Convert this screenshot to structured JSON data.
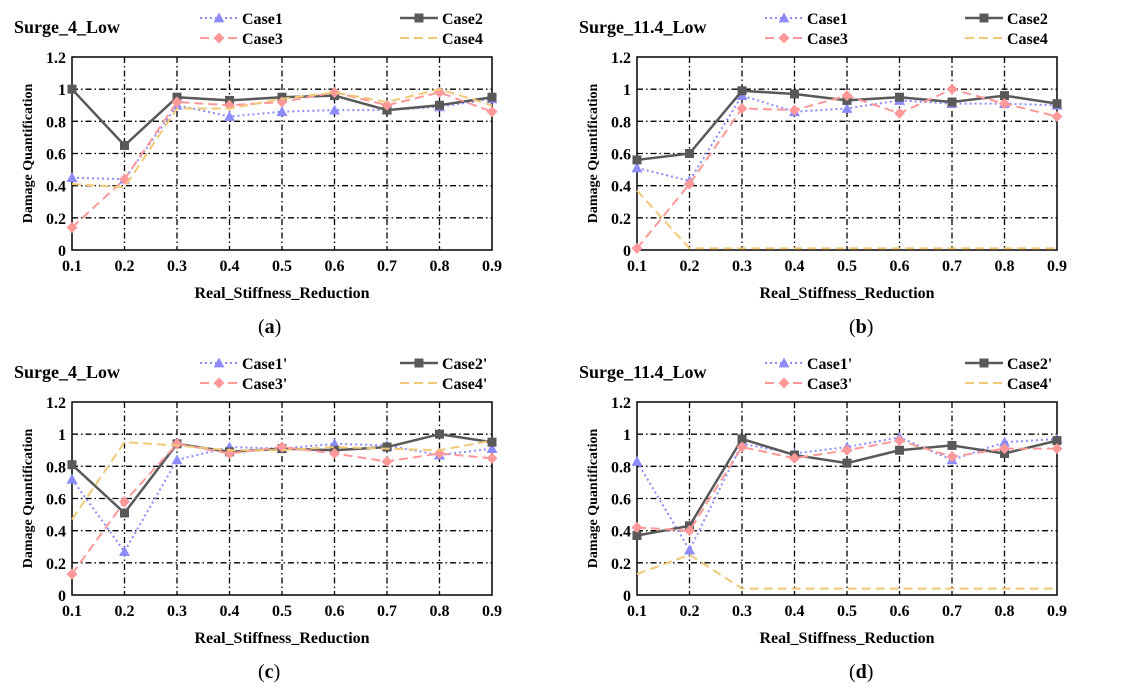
{
  "colors": {
    "case1": "#8c8cff",
    "case2": "#595959",
    "case3": "#ff9999",
    "case4": "#f0c878",
    "grid": "#000000"
  },
  "chart_data": [
    {
      "panel": "a",
      "type": "line",
      "title": "Surge_4_Low",
      "xlabel": "Real_Stiffness_Reduction",
      "ylabel": "Damage Quantification",
      "caption_letter": "a",
      "x": [
        0.1,
        0.2,
        0.3,
        0.4,
        0.5,
        0.6,
        0.7,
        0.8,
        0.9
      ],
      "xlim": [
        0.1,
        0.9
      ],
      "ylim": [
        0,
        1.2
      ],
      "x_ticks": [
        "0.1",
        "0.2",
        "0.3",
        "0.4",
        "0.5",
        "0.6",
        "0.7",
        "0.8",
        "0.9"
      ],
      "y_ticks": [
        "0",
        "0.2",
        "0.4",
        "0.6",
        "0.8",
        "1",
        "1.2"
      ],
      "grid": true,
      "legend_position": "top",
      "series": [
        {
          "name": "Case1",
          "style": "dotted-triangle",
          "values": [
            0.45,
            0.44,
            0.9,
            0.83,
            0.86,
            0.87,
            0.87,
            0.89,
            0.94
          ]
        },
        {
          "name": "Case2",
          "style": "solid-square",
          "values": [
            1.0,
            0.65,
            0.95,
            0.93,
            0.95,
            0.96,
            0.87,
            0.9,
            0.95
          ]
        },
        {
          "name": "Case3",
          "style": "dashed-diamond",
          "values": [
            0.14,
            0.44,
            0.92,
            0.9,
            0.92,
            0.98,
            0.9,
            0.98,
            0.86
          ]
        },
        {
          "name": "Case4",
          "style": "dashed",
          "values": [
            0.41,
            0.39,
            0.88,
            0.88,
            0.94,
            0.98,
            0.92,
            1.0,
            0.9
          ]
        }
      ]
    },
    {
      "panel": "b",
      "type": "line",
      "title": "Surge_11.4_Low",
      "xlabel": "Real_Stiffness_Reduction",
      "ylabel": "Damage Quantification",
      "caption_letter": "b",
      "x": [
        0.1,
        0.2,
        0.3,
        0.4,
        0.5,
        0.6,
        0.7,
        0.8,
        0.9
      ],
      "xlim": [
        0.1,
        0.9
      ],
      "ylim": [
        0,
        1.2
      ],
      "x_ticks": [
        "0.1",
        "0.2",
        "0.3",
        "0.4",
        "0.5",
        "0.6",
        "0.7",
        "0.8",
        "0.9"
      ],
      "y_ticks": [
        "0",
        "0.2",
        "0.4",
        "0.6",
        "0.8",
        "1",
        "1.2"
      ],
      "grid": true,
      "legend_position": "top",
      "series": [
        {
          "name": "Case1",
          "style": "dotted-triangle",
          "values": [
            0.51,
            0.43,
            0.96,
            0.86,
            0.88,
            0.93,
            0.91,
            0.91,
            0.9
          ]
        },
        {
          "name": "Case2",
          "style": "solid-square",
          "values": [
            0.56,
            0.6,
            0.99,
            0.97,
            0.93,
            0.95,
            0.92,
            0.96,
            0.91
          ]
        },
        {
          "name": "Case3",
          "style": "dashed-diamond",
          "values": [
            0.01,
            0.41,
            0.88,
            0.87,
            0.96,
            0.85,
            1.0,
            0.91,
            0.83
          ]
        },
        {
          "name": "Case4",
          "style": "dashed",
          "values": [
            0.37,
            0.01,
            0.01,
            0.01,
            0.01,
            0.01,
            0.01,
            0.01,
            0.01
          ]
        }
      ]
    },
    {
      "panel": "c",
      "type": "line",
      "title": "Surge_4_Low",
      "xlabel": "Real_Stiffness_Reduction",
      "ylabel": "Damage Quantification",
      "caption_letter": "c",
      "x": [
        0.1,
        0.2,
        0.3,
        0.4,
        0.5,
        0.6,
        0.7,
        0.8,
        0.9
      ],
      "xlim": [
        0.1,
        0.9
      ],
      "ylim": [
        0,
        1.2
      ],
      "x_ticks": [
        "0.1",
        "0.2",
        "0.3",
        "0.4",
        "0.5",
        "0.6",
        "0.7",
        "0.8",
        "0.9"
      ],
      "y_ticks": [
        "0",
        "0.2",
        "0.4",
        "0.6",
        "0.8",
        "1",
        "1.2"
      ],
      "grid": true,
      "legend_position": "top",
      "series": [
        {
          "name": "Case1'",
          "style": "dotted-triangle",
          "values": [
            0.72,
            0.27,
            0.84,
            0.92,
            0.91,
            0.94,
            0.93,
            0.87,
            0.91
          ]
        },
        {
          "name": "Case2'",
          "style": "solid-square",
          "values": [
            0.81,
            0.51,
            0.94,
            0.89,
            0.91,
            0.9,
            0.92,
            1.0,
            0.95
          ]
        },
        {
          "name": "Case3'",
          "style": "dashed-diamond",
          "values": [
            0.13,
            0.58,
            0.94,
            0.88,
            0.92,
            0.88,
            0.83,
            0.88,
            0.85
          ]
        },
        {
          "name": "Case4'",
          "style": "dashed",
          "values": [
            0.47,
            0.95,
            0.93,
            0.9,
            0.9,
            0.92,
            0.91,
            0.9,
            0.96
          ]
        }
      ]
    },
    {
      "panel": "d",
      "type": "line",
      "title": "Surge_11.4_Low",
      "xlabel": "Real_Stiffness_Reduction",
      "ylabel": "Damage Quantification",
      "caption_letter": "d",
      "x": [
        0.1,
        0.2,
        0.3,
        0.4,
        0.5,
        0.6,
        0.7,
        0.8,
        0.9
      ],
      "xlim": [
        0.1,
        0.9
      ],
      "ylim": [
        0,
        1.2
      ],
      "x_ticks": [
        "0.1",
        "0.2",
        "0.3",
        "0.4",
        "0.5",
        "0.6",
        "0.7",
        "0.8",
        "0.9"
      ],
      "y_ticks": [
        "0",
        "0.2",
        "0.4",
        "0.6",
        "0.8",
        "1",
        "1.2"
      ],
      "grid": true,
      "legend_position": "top",
      "series": [
        {
          "name": "Case1'",
          "style": "dotted-triangle",
          "values": [
            0.83,
            0.28,
            0.94,
            0.88,
            0.92,
            0.98,
            0.84,
            0.95,
            0.97
          ]
        },
        {
          "name": "Case2'",
          "style": "solid-square",
          "values": [
            0.37,
            0.43,
            0.97,
            0.87,
            0.82,
            0.9,
            0.93,
            0.88,
            0.96
          ]
        },
        {
          "name": "Case3'",
          "style": "dashed-diamond",
          "values": [
            0.42,
            0.4,
            0.92,
            0.85,
            0.9,
            0.96,
            0.86,
            0.91,
            0.91
          ]
        },
        {
          "name": "Case4'",
          "style": "dashed",
          "values": [
            0.13,
            0.25,
            0.04,
            0.04,
            0.04,
            0.04,
            0.04,
            0.04,
            0.04
          ]
        }
      ]
    }
  ]
}
